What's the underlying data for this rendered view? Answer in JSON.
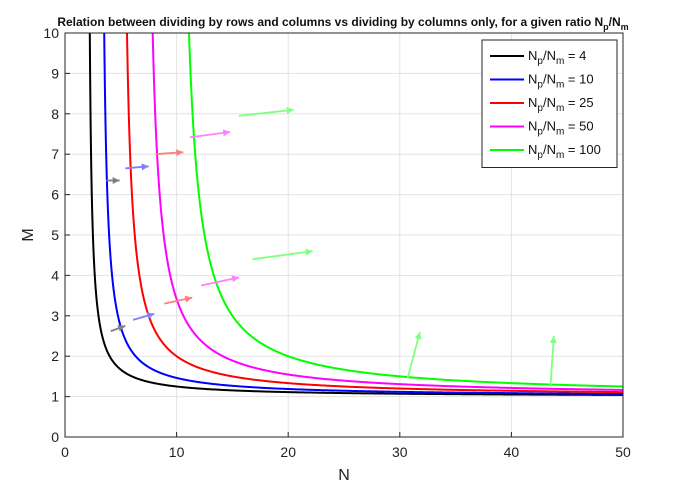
{
  "chart_data": {
    "type": "line",
    "title": {
      "main": "Relation between dividing by rows and columns vs dividing by columns only, for a given ratio N",
      "sub1": "p",
      "mid": "/N",
      "sub2": "m"
    },
    "xlabel": "N",
    "ylabel": "M",
    "xlim": [
      0,
      50
    ],
    "ylim": [
      0,
      10
    ],
    "xticks": [
      0,
      10,
      20,
      30,
      40,
      50
    ],
    "yticks": [
      0,
      1,
      2,
      3,
      4,
      5,
      6,
      7,
      8,
      9,
      10
    ],
    "grid": true,
    "legend_position": "top-right",
    "curve_formula": "M = N / (N - sqrt(ratio))",
    "series": [
      {
        "name": "N_p/N_m = 4",
        "ratio": 4,
        "color": "#000000",
        "legend": {
          "a": "N",
          "b": "p",
          "c": "/N",
          "d": "m",
          "e": " = 4"
        }
      },
      {
        "name": "N_p/N_m = 10",
        "ratio": 10,
        "color": "#0000ff",
        "legend": {
          "a": "N",
          "b": "p",
          "c": "/N",
          "d": "m",
          "e": " = 10"
        }
      },
      {
        "name": "N_p/N_m = 25",
        "ratio": 25,
        "color": "#ff0000",
        "legend": {
          "a": "N",
          "b": "p",
          "c": "/N",
          "d": "m",
          "e": " = 25"
        }
      },
      {
        "name": "N_p/N_m = 50",
        "ratio": 50,
        "color": "#ff00ff",
        "legend": {
          "a": "N",
          "b": "p",
          "c": "/N",
          "d": "m",
          "e": " = 50"
        }
      },
      {
        "name": "N_p/N_m = 100",
        "ratio": 100,
        "color": "#00ff00",
        "legend": {
          "a": "N",
          "b": "p",
          "c": "/N",
          "d": "m",
          "e": " = 100"
        }
      }
    ],
    "arrows": [
      {
        "series": "N_p/N_m = 4",
        "color": "#808080",
        "from": [
          3.7,
          6.35
        ],
        "to": [
          4.9,
          6.35
        ]
      },
      {
        "series": "N_p/N_m = 4",
        "color": "#808080",
        "from": [
          4.1,
          2.62
        ],
        "to": [
          5.4,
          2.75
        ]
      },
      {
        "series": "N_p/N_m = 10",
        "color": "#7f7fff",
        "from": [
          5.4,
          6.65
        ],
        "to": [
          7.5,
          6.7
        ]
      },
      {
        "series": "N_p/N_m = 10",
        "color": "#7f7fff",
        "from": [
          6.1,
          2.9
        ],
        "to": [
          8.0,
          3.05
        ]
      },
      {
        "series": "N_p/N_m = 25",
        "color": "#ff7f7f",
        "from": [
          8.1,
          7.0
        ],
        "to": [
          10.6,
          7.05
        ]
      },
      {
        "series": "N_p/N_m = 25",
        "color": "#ff7f7f",
        "from": [
          8.9,
          3.3
        ],
        "to": [
          11.4,
          3.45
        ]
      },
      {
        "series": "N_p/N_m = 50",
        "color": "#ff80ff",
        "from": [
          11.2,
          7.42
        ],
        "to": [
          14.8,
          7.55
        ]
      },
      {
        "series": "N_p/N_m = 50",
        "color": "#ff80ff",
        "from": [
          12.2,
          3.75
        ],
        "to": [
          15.6,
          3.95
        ]
      },
      {
        "series": "N_p/N_m = 100",
        "color": "#80ff80",
        "from": [
          15.6,
          7.95
        ],
        "to": [
          20.5,
          8.1
        ]
      },
      {
        "series": "N_p/N_m = 100",
        "color": "#80ff80",
        "from": [
          16.8,
          4.4
        ],
        "to": [
          22.2,
          4.6
        ]
      },
      {
        "series": "N_p/N_m = 100",
        "color": "#80ff80",
        "from": [
          30.7,
          1.45
        ],
        "to": [
          31.8,
          2.6
        ]
      },
      {
        "series": "N_p/N_m = 100",
        "color": "#80ff80",
        "from": [
          43.5,
          1.25
        ],
        "to": [
          43.8,
          2.5
        ]
      }
    ]
  }
}
